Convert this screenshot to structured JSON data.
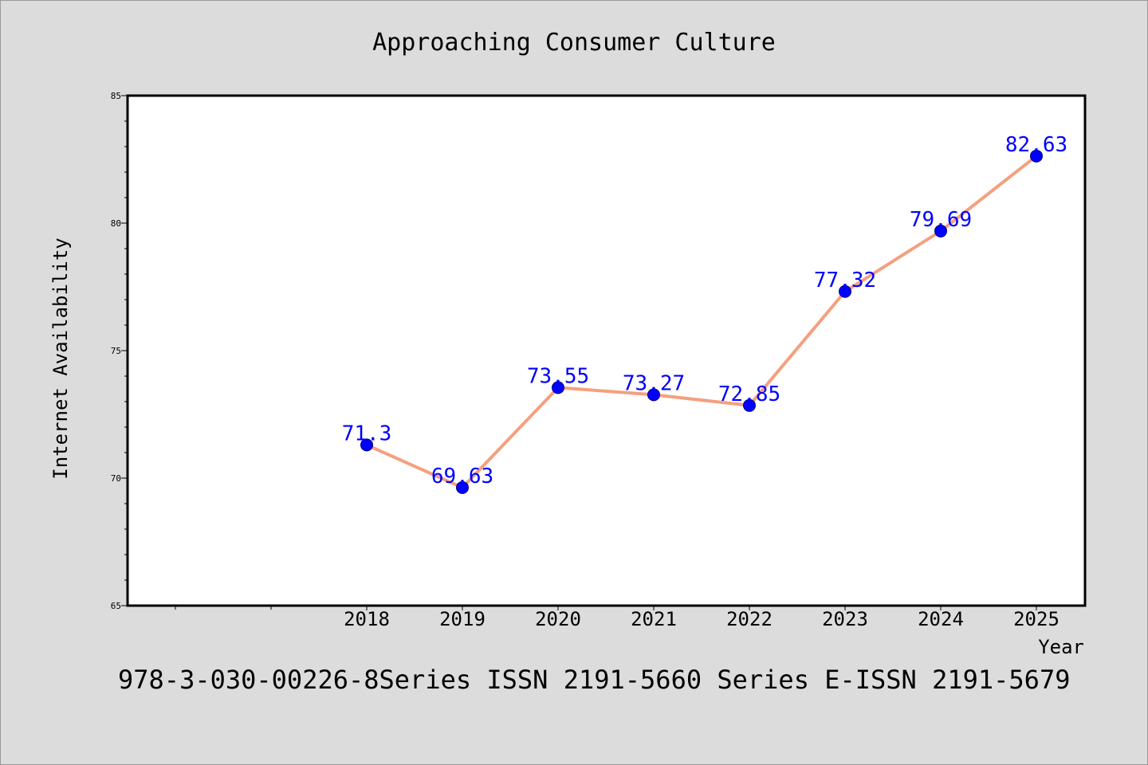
{
  "chart_data": {
    "type": "line",
    "title": "Approaching Consumer Culture",
    "xlabel": "Year",
    "ylabel": "Internet Availability",
    "x": [
      "2018",
      "2019",
      "2020",
      "2021",
      "2022",
      "2023",
      "2024",
      "2025"
    ],
    "series": [
      {
        "values": [
          71.3,
          69.63,
          73.55,
          73.27,
          72.85,
          77.32,
          79.69,
          82.63
        ],
        "data_labels": [
          "71.3",
          "69.63",
          "73.55",
          "73.27",
          "72.85",
          "77.32",
          "79.69",
          "82.63"
        ]
      }
    ],
    "ylim": [
      65,
      85
    ],
    "y_ticks": [
      65,
      70,
      75,
      80,
      85
    ],
    "y_tick_labels": [
      "65",
      "70",
      "75",
      "80",
      "85"
    ],
    "grid": false,
    "colors": {
      "line": "#f4a07f",
      "marker": "#0000ff",
      "marker_edge": "#000080",
      "label": "#0000ff",
      "background": "#dcdcdc",
      "plot_area": "#ffffff"
    }
  },
  "footer": "978-3-030-00226-8Series ISSN 2191-5660 Series E-ISSN 2191-5679"
}
